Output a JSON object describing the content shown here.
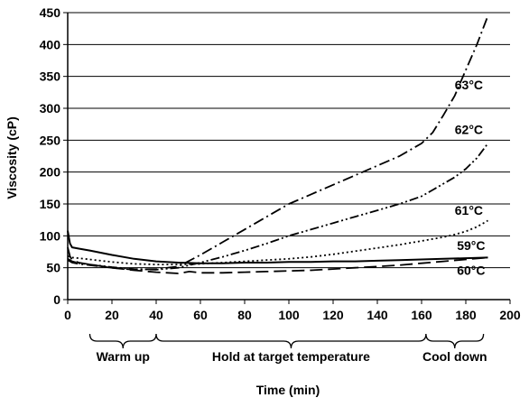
{
  "chart_data": {
    "type": "line",
    "title": "",
    "xlabel": "Time (min)",
    "ylabel": "Viscosity (cP)",
    "xlim": [
      0,
      200
    ],
    "ylim": [
      0,
      450
    ],
    "x_ticks": [
      "0",
      "20",
      "40",
      "60",
      "80",
      "100",
      "120",
      "140",
      "160",
      "180",
      "200"
    ],
    "y_ticks": [
      "0",
      "50",
      "100",
      "150",
      "200",
      "250",
      "300",
      "350",
      "400",
      "450"
    ],
    "grid": "horizontal",
    "legend": "inline labels at line ends",
    "phases": [
      {
        "label": "Warm up",
        "start": 10,
        "end": 40
      },
      {
        "label": "Hold at target temperature",
        "start": 40,
        "end": 162
      },
      {
        "label": "Cool down",
        "start": 162,
        "end": 188
      }
    ],
    "series": [
      {
        "name": "63°C",
        "style": "dash-dot",
        "x": [
          0,
          2,
          5,
          10,
          20,
          30,
          40,
          50,
          60,
          70,
          80,
          90,
          100,
          110,
          120,
          130,
          140,
          150,
          160,
          165,
          170,
          175,
          180,
          185,
          190
        ],
        "y": [
          62,
          58,
          56,
          54,
          50,
          47,
          48,
          52,
          70,
          90,
          110,
          130,
          150,
          165,
          180,
          195,
          210,
          225,
          245,
          262,
          290,
          320,
          360,
          400,
          445
        ]
      },
      {
        "name": "62°C",
        "style": "dash-dot-dot",
        "x": [
          0,
          2,
          5,
          10,
          20,
          30,
          40,
          50,
          60,
          70,
          80,
          90,
          100,
          110,
          120,
          130,
          140,
          150,
          160,
          165,
          170,
          175,
          180,
          185,
          190
        ],
        "y": [
          64,
          60,
          57,
          55,
          51,
          48,
          47,
          50,
          58,
          67,
          77,
          88,
          100,
          110,
          120,
          130,
          140,
          150,
          162,
          172,
          182,
          192,
          205,
          222,
          245
        ]
      },
      {
        "name": "61°C",
        "style": "dotted",
        "x": [
          0,
          2,
          5,
          10,
          20,
          30,
          40,
          50,
          60,
          70,
          80,
          90,
          100,
          110,
          120,
          130,
          140,
          150,
          160,
          170,
          175,
          180,
          185,
          190
        ],
        "y": [
          68,
          66,
          65,
          63,
          59,
          56,
          55,
          55,
          56,
          58,
          60,
          62,
          64,
          67,
          71,
          76,
          81,
          86,
          92,
          98,
          102,
          107,
          114,
          124
        ]
      },
      {
        "name": "59°C",
        "style": "solid",
        "x": [
          0,
          1,
          2,
          5,
          10,
          20,
          30,
          40,
          50,
          60,
          70,
          80,
          90,
          100,
          110,
          120,
          130,
          140,
          150,
          160,
          170,
          180,
          190
        ],
        "y": [
          108,
          88,
          82,
          80,
          77,
          70,
          64,
          60,
          58,
          57,
          57,
          58,
          58,
          59,
          59,
          60,
          60,
          61,
          62,
          63,
          64,
          65,
          66
        ]
      },
      {
        "name": "60°C",
        "style": "long-dash",
        "x": [
          0,
          1,
          2,
          5,
          10,
          20,
          30,
          40,
          50,
          55,
          60,
          70,
          80,
          90,
          100,
          110,
          120,
          130,
          140,
          150,
          160,
          170,
          180,
          190
        ],
        "y": [
          82,
          68,
          62,
          58,
          55,
          50,
          46,
          43,
          41,
          44,
          42,
          42,
          43,
          44,
          45,
          46,
          48,
          50,
          52,
          54,
          57,
          60,
          63,
          66
        ]
      }
    ],
    "series_labels": [
      "63°C",
      "62°C",
      "61°C",
      "59°C",
      "60°C"
    ]
  }
}
